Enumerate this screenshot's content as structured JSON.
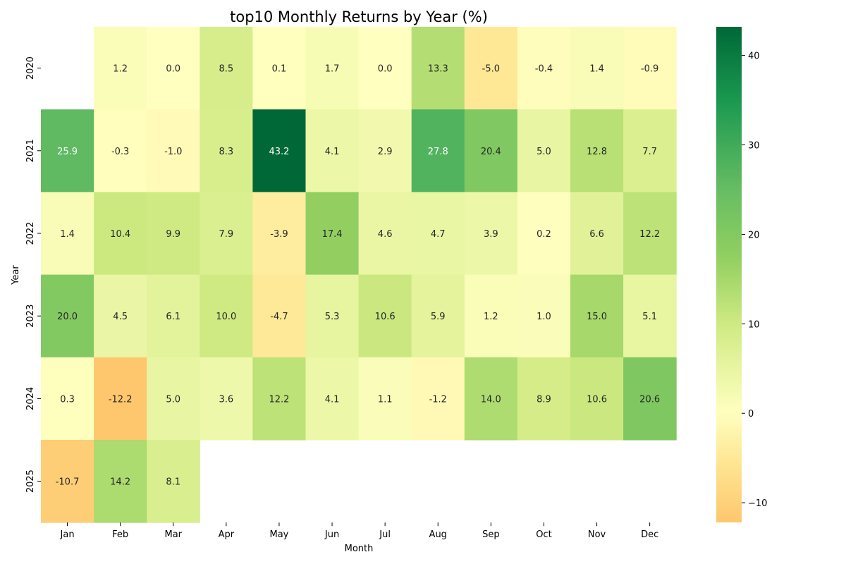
{
  "chart_data": {
    "type": "heatmap",
    "title": "top10 Monthly Returns by Year (%)",
    "xlabel": "Month",
    "ylabel": "Year",
    "x_categories": [
      "Jan",
      "Feb",
      "Mar",
      "Apr",
      "May",
      "Jun",
      "Jul",
      "Aug",
      "Sep",
      "Oct",
      "Nov",
      "Dec"
    ],
    "y_categories": [
      "2020",
      "2021",
      "2022",
      "2023",
      "2024",
      "2025"
    ],
    "values": [
      [
        null,
        1.2,
        0.0,
        8.5,
        0.1,
        1.7,
        0.0,
        13.3,
        -5.0,
        -0.4,
        1.4,
        -0.9
      ],
      [
        25.9,
        -0.3,
        -1.0,
        8.3,
        43.2,
        4.1,
        2.9,
        27.8,
        20.4,
        5.0,
        12.8,
        7.7
      ],
      [
        1.4,
        10.4,
        9.9,
        7.9,
        -3.9,
        17.4,
        4.6,
        4.7,
        3.9,
        0.2,
        6.6,
        12.2
      ],
      [
        20.0,
        4.5,
        6.1,
        10.0,
        -4.7,
        5.3,
        10.6,
        5.9,
        1.2,
        1.0,
        15.0,
        5.1
      ],
      [
        0.3,
        -12.2,
        5.0,
        3.6,
        12.2,
        4.1,
        1.1,
        -1.2,
        14.0,
        8.9,
        10.6,
        20.6
      ],
      [
        -10.7,
        14.2,
        8.1,
        null,
        null,
        null,
        null,
        null,
        null,
        null,
        null,
        null
      ]
    ],
    "colorscale": "RdYlGn",
    "colorbar": {
      "range": [
        -12.2,
        43.2
      ],
      "ticks": [
        -10,
        0,
        10,
        20,
        30,
        40
      ]
    },
    "annotations": "cell values shown with one decimal"
  }
}
